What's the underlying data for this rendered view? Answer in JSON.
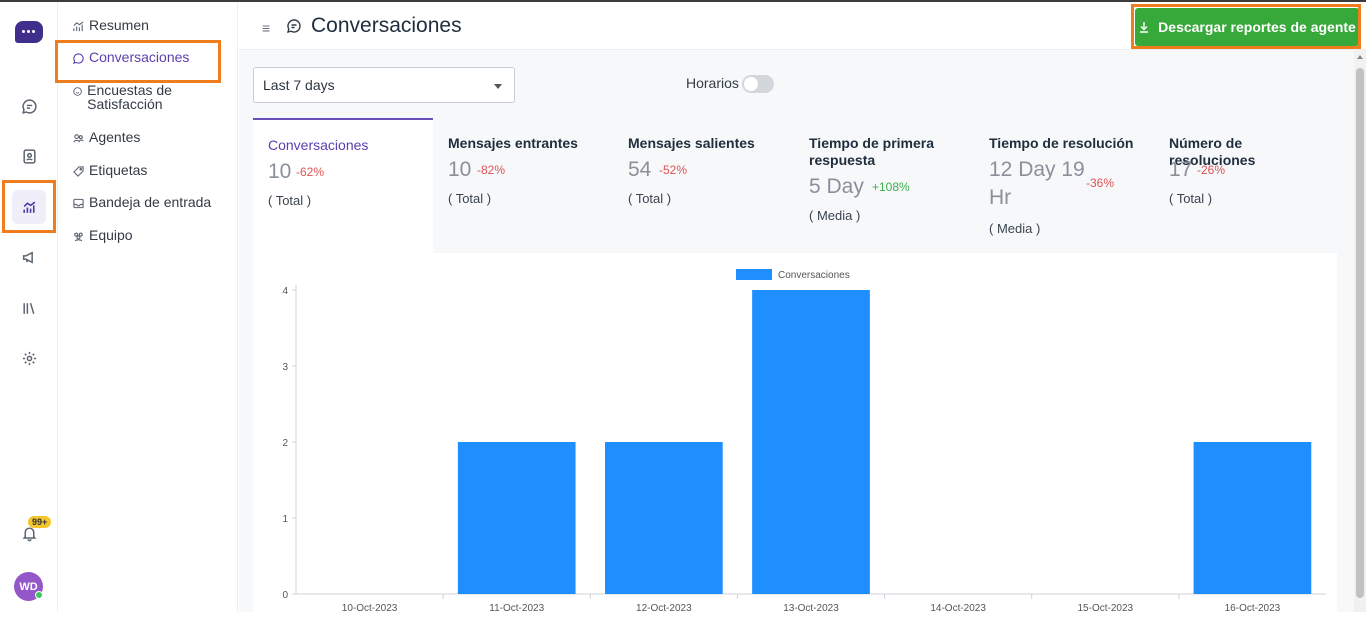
{
  "sidebar": {
    "items": [
      {
        "label": "Resumen",
        "icon": "chart-line-icon"
      },
      {
        "label": "Conversaciones",
        "icon": "chat-bubble-icon"
      },
      {
        "label": "Encuestas de Satisfacción",
        "icon": "smiley-icon"
      },
      {
        "label": "Agentes",
        "icon": "people-icon"
      },
      {
        "label": "Etiquetas",
        "icon": "tag-icon"
      },
      {
        "label": "Bandeja de entrada",
        "icon": "inbox-icon"
      },
      {
        "label": "Equipo",
        "icon": "team-icon"
      }
    ]
  },
  "rail": {
    "badge": "99+",
    "avatar": "WD"
  },
  "header": {
    "title": "Conversaciones",
    "download_label": "Descargar reportes de agente"
  },
  "filters": {
    "range": "Last 7 days",
    "toggle_label": "Horarios"
  },
  "metrics": [
    {
      "title": "Conversaciones",
      "value": "10",
      "change": "-62%",
      "agg": "( Total )"
    },
    {
      "title": "Mensajes entrantes",
      "value": "10",
      "change": "-82%",
      "agg": "( Total )"
    },
    {
      "title": "Mensajes salientes",
      "value": "54",
      "change": "-52%",
      "agg": "( Total )"
    },
    {
      "title": "Tiempo de primera respuesta",
      "value": "5 Day",
      "change": "+108%",
      "agg": "( Media )"
    },
    {
      "title": "Tiempo de resolución",
      "value": "12 Day 19 Hr",
      "change": "-36%",
      "agg": "( Media )"
    },
    {
      "title": "Número de resoluciones",
      "value": "17",
      "change": "-26%",
      "agg": "( Total )"
    }
  ],
  "colors": {
    "accent": "#5a3fb0",
    "bar": "#1f8fff",
    "button": "#37a83a",
    "highlight": "#f07d1d",
    "negative": "#e05252",
    "positive": "#3cae4a"
  },
  "chart_data": {
    "type": "bar",
    "categories": [
      "10-Oct-2023",
      "11-Oct-2023",
      "12-Oct-2023",
      "13-Oct-2023",
      "14-Oct-2023",
      "15-Oct-2023",
      "16-Oct-2023"
    ],
    "series": [
      {
        "name": "Conversaciones",
        "values": [
          0,
          2,
          2,
          4,
          0,
          0,
          2
        ]
      }
    ],
    "yticks": [
      "0",
      "1",
      "2",
      "3",
      "4"
    ],
    "ylim": [
      0,
      4
    ],
    "legend": "top-center",
    "grid": false
  }
}
